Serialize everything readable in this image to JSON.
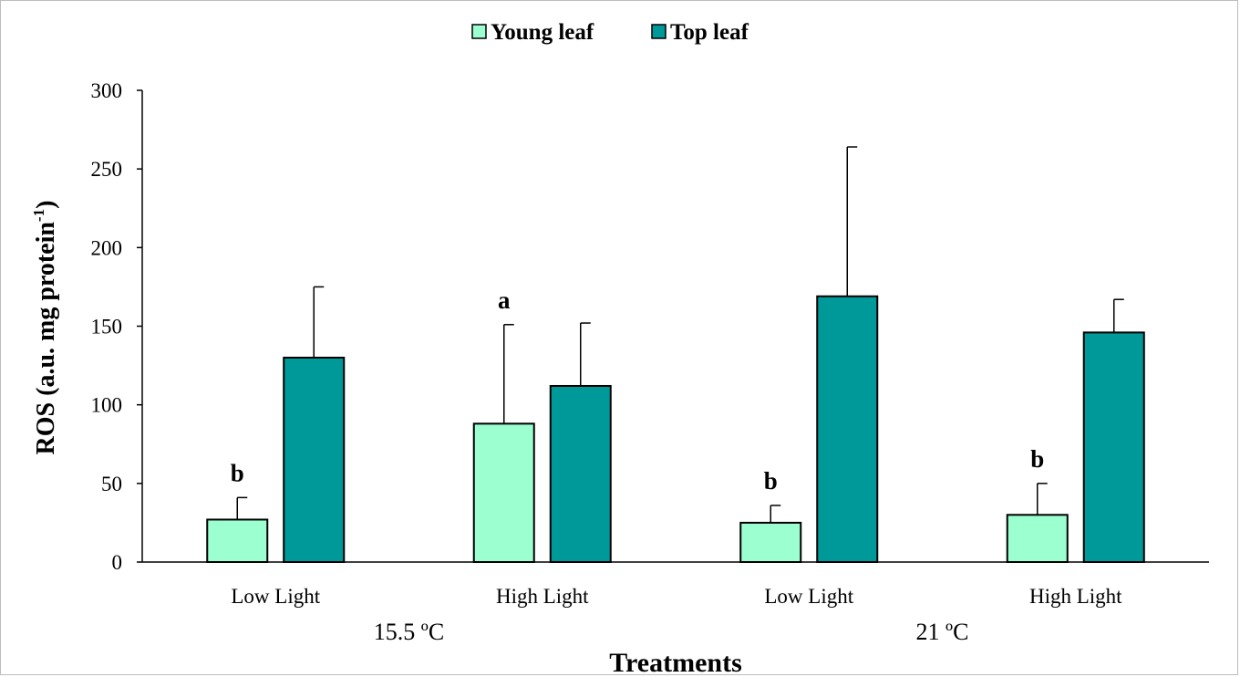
{
  "chart_data": {
    "type": "bar",
    "title": "",
    "xlabel": "Treatments",
    "ylabel_main": "ROS (a.u. mg protein",
    "ylabel_sup": "-1",
    "ylabel_close": ")",
    "ylim": [
      0,
      300
    ],
    "yticks": [
      0,
      50,
      100,
      150,
      200,
      250,
      300
    ],
    "grid": false,
    "legend_position": "top-center",
    "groups": [
      {
        "label": "15.5 ºC",
        "categories": [
          "Low Light",
          "High Light"
        ]
      },
      {
        "label": "21 ºC",
        "categories": [
          "Low Light",
          "High Light"
        ]
      }
    ],
    "categories": [
      "Low Light",
      "High Light",
      "Low Light",
      "High Light"
    ],
    "series": [
      {
        "name": "Young leaf",
        "color": "#9bffd0",
        "values": [
          27,
          88,
          25,
          30
        ],
        "error": [
          14,
          63,
          11,
          20
        ],
        "letters": [
          "b",
          "a",
          "b",
          "b"
        ]
      },
      {
        "name": "Top leaf",
        "color": "#009999",
        "values": [
          130,
          112,
          169,
          146
        ],
        "error": [
          45,
          40,
          95,
          21
        ],
        "letters": [
          "",
          "",
          "",
          ""
        ]
      }
    ]
  }
}
